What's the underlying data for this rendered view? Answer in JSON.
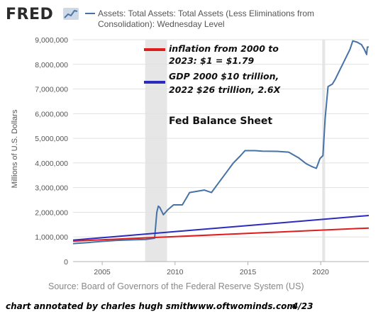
{
  "brand": {
    "name": "FRED",
    "icon": "trend-chart-icon"
  },
  "chart_data": {
    "type": "line",
    "title": "Assets: Total Assets: Total Assets (Less Eliminations from Consolidation): Wednesday Level",
    "title_lines": [
      "Assets: Total Assets: Total Assets (Less Eliminations from",
      "Consolidation): Wednesday Level"
    ],
    "ylabel": "Millions of U.S. Dollars",
    "xlabel": "",
    "source": "Source: Board of Governors of the Federal Reserve System (US)",
    "xlim": [
      2003.0,
      2023.3
    ],
    "ylim": [
      0,
      9000000
    ],
    "x_ticks": [
      2005,
      2010,
      2015,
      2020
    ],
    "x_tick_labels": [
      "2005",
      "2010",
      "2015",
      "2020"
    ],
    "y_ticks": [
      0,
      1000000,
      2000000,
      3000000,
      4000000,
      5000000,
      6000000,
      7000000,
      8000000,
      9000000
    ],
    "y_tick_labels": [
      "0",
      "1,000,000",
      "2,000,000",
      "3,000,000",
      "4,000,000",
      "5,000,000",
      "6,000,000",
      "7,000,000",
      "8,000,000",
      "9,000,000"
    ],
    "grid": true,
    "legend_position": "top",
    "recessions": [
      [
        2007.95,
        2009.45
      ],
      [
        2020.1,
        2020.3
      ]
    ],
    "series": [
      {
        "name": "Assets: Total Assets: Total Assets (Less Eliminations from Consolidation): Wednesday Level",
        "color": "#4572a7",
        "x": [
          2003.0,
          2004.0,
          2005.0,
          2006.0,
          2007.0,
          2008.0,
          2008.6,
          2008.75,
          2008.85,
          2008.95,
          2009.2,
          2009.5,
          2009.9,
          2010.5,
          2011.0,
          2011.5,
          2012.0,
          2012.5,
          2013.0,
          2013.5,
          2014.0,
          2014.5,
          2014.8,
          2015.5,
          2016.0,
          2017.0,
          2017.8,
          2018.5,
          2019.0,
          2019.4,
          2019.7,
          2019.95,
          2020.15,
          2020.3,
          2020.5,
          2020.8,
          2021.0,
          2021.5,
          2022.0,
          2022.2,
          2022.5,
          2022.8,
          2023.0,
          2023.15,
          2023.2,
          2023.3
        ],
        "y": [
          730000,
          770000,
          820000,
          860000,
          880000,
          900000,
          950000,
          2000000,
          2250000,
          2200000,
          1900000,
          2100000,
          2300000,
          2300000,
          2800000,
          2850000,
          2900000,
          2800000,
          3200000,
          3600000,
          4000000,
          4300000,
          4500000,
          4500000,
          4480000,
          4470000,
          4440000,
          4200000,
          3970000,
          3850000,
          3780000,
          4180000,
          4300000,
          5800000,
          7100000,
          7200000,
          7400000,
          8000000,
          8600000,
          8950000,
          8900000,
          8800000,
          8600000,
          8400000,
          8700000,
          8700000
        ]
      },
      {
        "name": "GDP 2000 $10 trillion, 2022 $26 trillion, 2.6X",
        "color": "#2b2bbd",
        "x": [
          2003.0,
          2023.3
        ],
        "y": [
          870000,
          1870000
        ]
      },
      {
        "name": "inflation from 2000 to 2023: $1 = $1.79",
        "color": "#e01d1d",
        "x": [
          2003.0,
          2023.3
        ],
        "y": [
          830000,
          1360000
        ]
      }
    ],
    "annotations": {
      "inflation": [
        "inflation from 2000 to",
        "2023: $1 = $1.79"
      ],
      "gdp": [
        "GDP 2000 $10 trillion,",
        "2022 $26 trillion, 2.6X"
      ],
      "balance_sheet": "Fed Balance Sheet"
    }
  },
  "credit": {
    "left": "chart annotated by charles hugh smith",
    "site": "www.oftwominds.com",
    "date": "4/23"
  },
  "colors": {
    "grid": "#e1e1e1",
    "recession": "#e6e6e6",
    "axis": "#b0b0b0"
  }
}
